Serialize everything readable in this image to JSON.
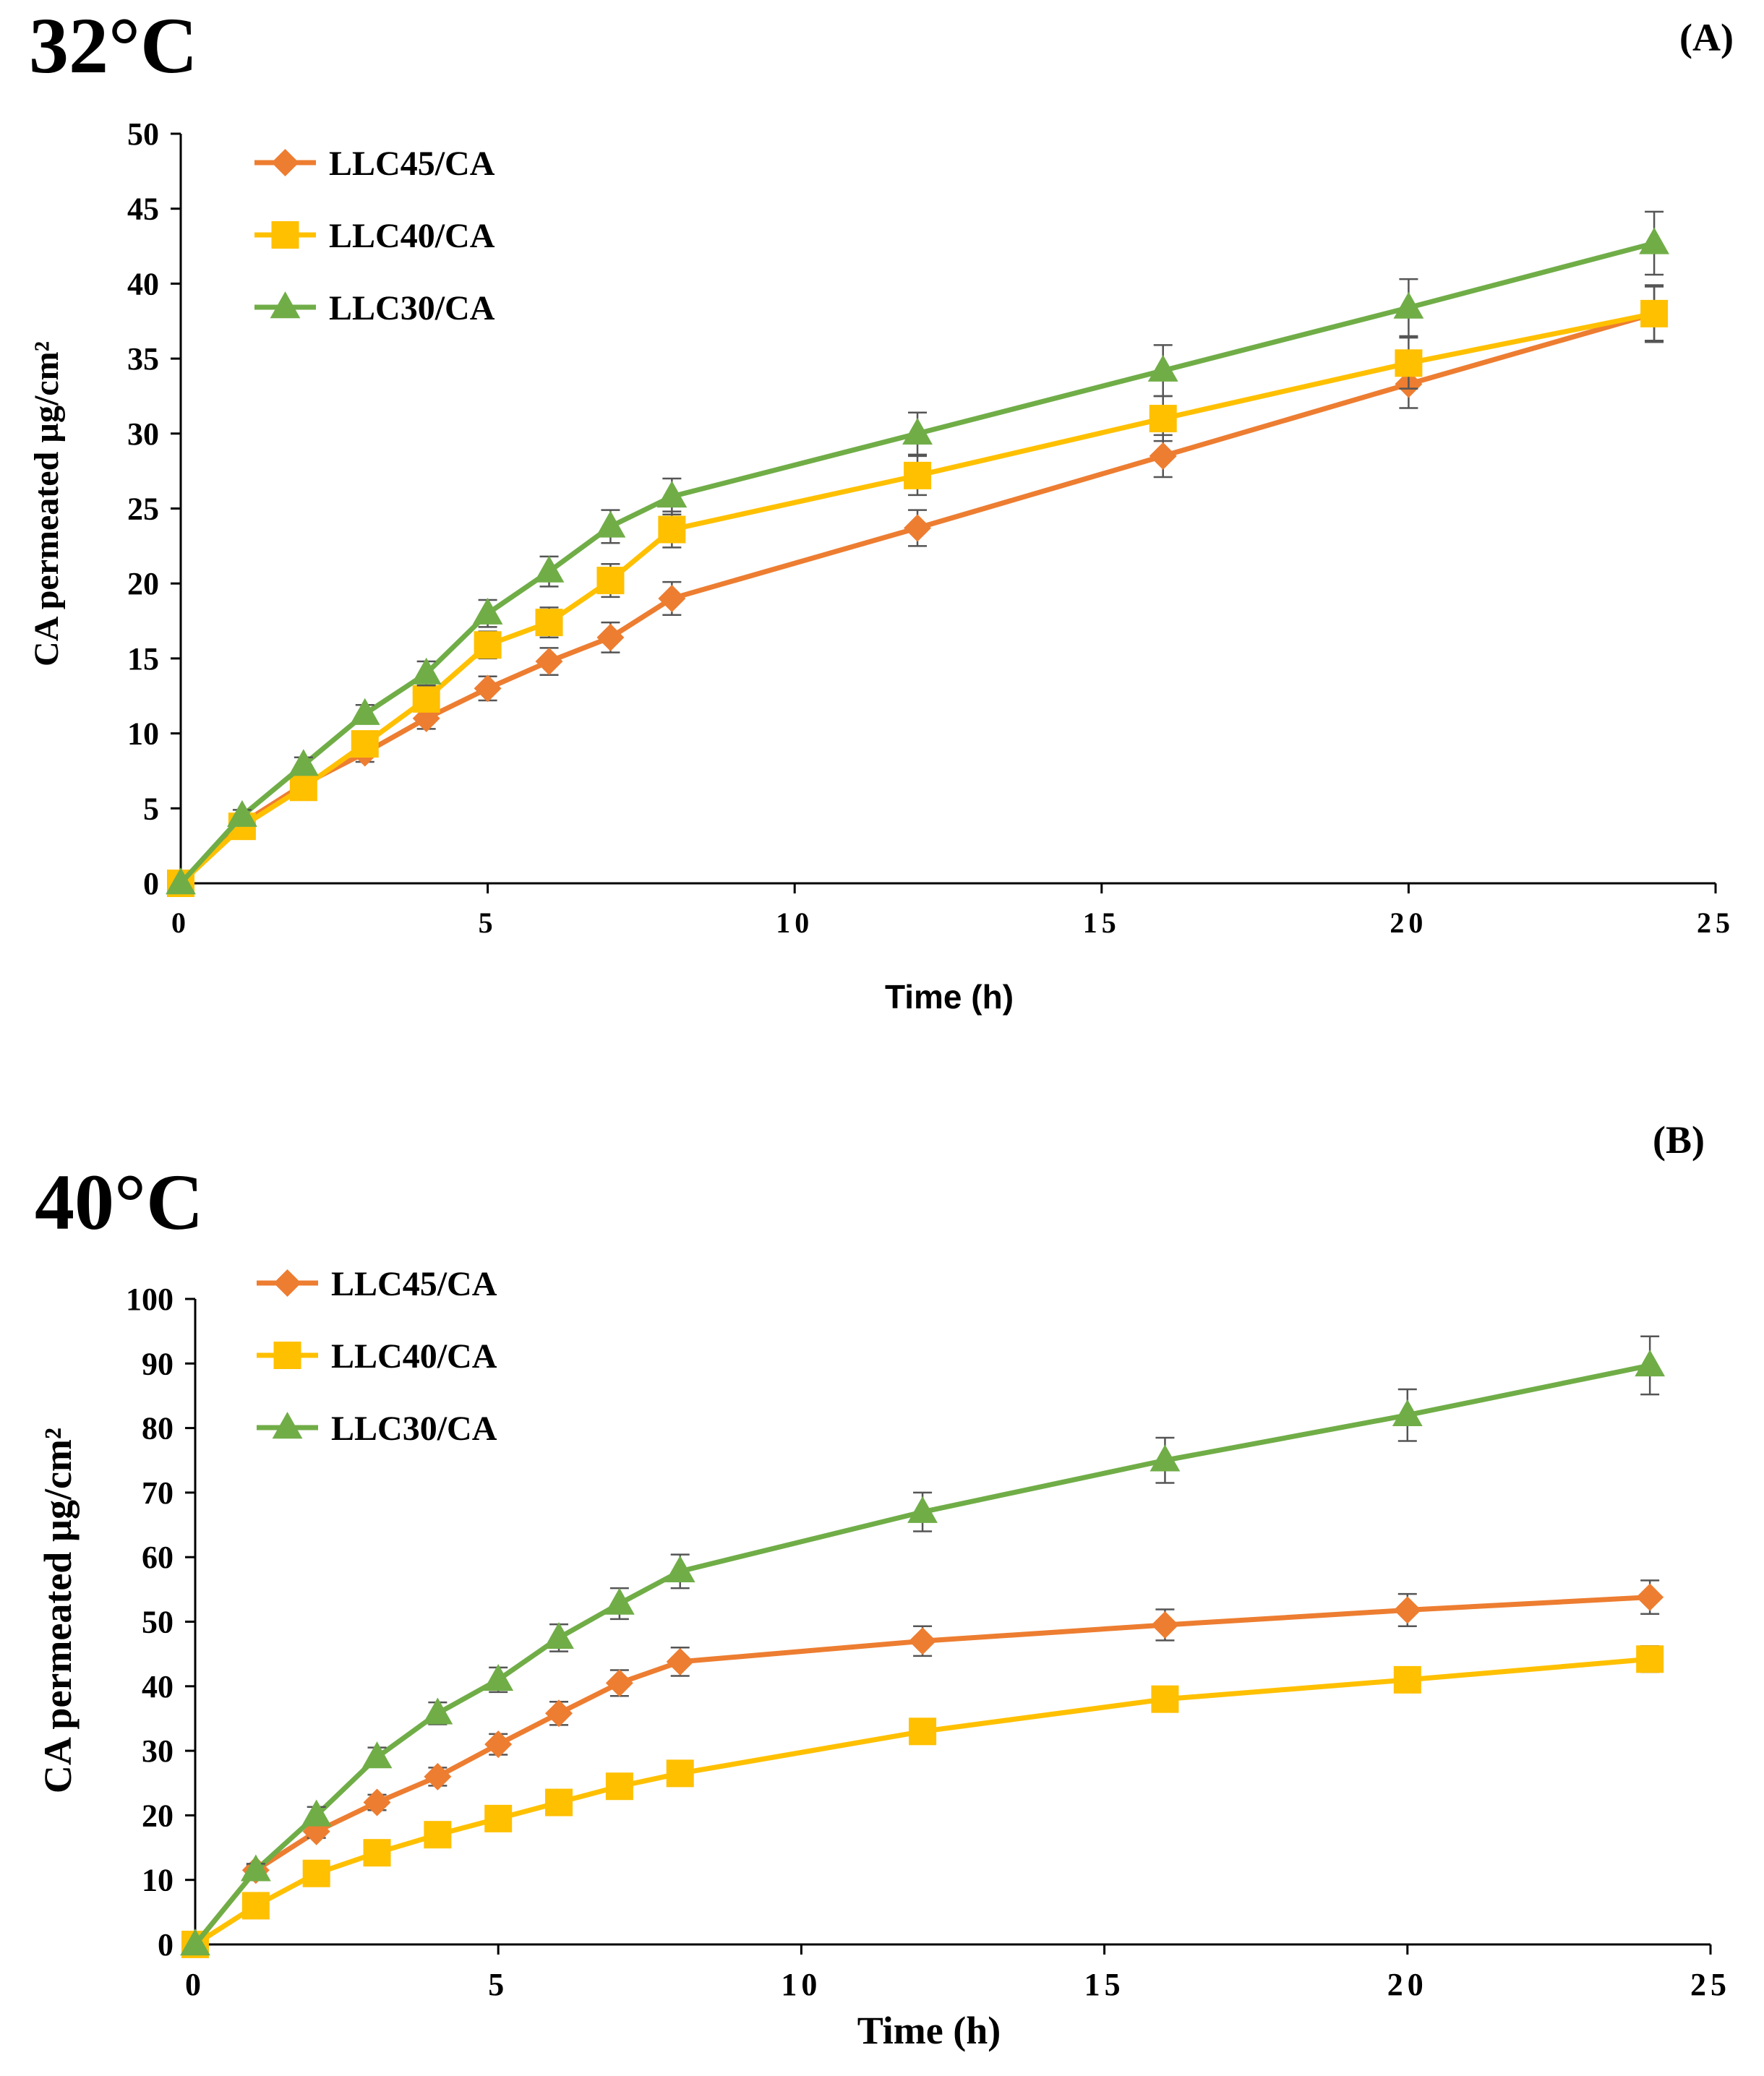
{
  "chart_data": [
    {
      "type": "line",
      "panel_label": "(A)",
      "temperature_label": "32°C",
      "xlabel": "Time (h)",
      "ylabel": "CA permeated µg/cm²",
      "xlim": [
        0,
        25
      ],
      "ylim": [
        0,
        50
      ],
      "xticks": [
        "0",
        "5",
        "10",
        "15",
        "20",
        "25"
      ],
      "yticks": [
        "0",
        "5",
        "10",
        "15",
        "20",
        "25",
        "30",
        "35",
        "40",
        "45",
        "50"
      ],
      "grid": false,
      "legend_position": "top-left",
      "x": [
        0,
        1,
        2,
        3,
        4,
        5,
        6,
        7,
        8,
        12,
        16,
        20,
        24
      ],
      "series": [
        {
          "name": "LLC45/CA",
          "color": "#ED7D31",
          "marker": "diamond",
          "values": [
            0,
            4.0,
            6.6,
            8.7,
            11.0,
            13.0,
            14.8,
            16.4,
            19.0,
            23.7,
            28.5,
            33.3,
            38.0
          ],
          "errors": [
            0,
            0.4,
            0.5,
            0.6,
            0.7,
            0.8,
            0.9,
            1.0,
            1.1,
            1.2,
            1.4,
            1.6,
            1.8
          ]
        },
        {
          "name": "LLC40/CA",
          "color": "#FFC000",
          "marker": "square",
          "values": [
            0,
            3.8,
            6.4,
            9.3,
            12.3,
            15.9,
            17.4,
            20.2,
            23.6,
            27.2,
            31.0,
            34.7,
            38.0
          ],
          "errors": [
            0,
            0.4,
            0.5,
            0.6,
            0.8,
            0.9,
            1.0,
            1.1,
            1.2,
            1.3,
            1.5,
            1.7,
            1.9
          ]
        },
        {
          "name": "LLC30/CA",
          "color": "#70AD47",
          "marker": "triangle",
          "values": [
            0,
            4.5,
            7.9,
            11.3,
            14.0,
            18.0,
            20.8,
            23.8,
            25.8,
            30.0,
            34.2,
            38.4,
            42.7
          ],
          "errors": [
            0,
            0.4,
            0.5,
            0.6,
            0.8,
            0.9,
            1.0,
            1.1,
            1.2,
            1.4,
            1.7,
            1.9,
            2.1
          ]
        }
      ]
    },
    {
      "type": "line",
      "panel_label": "(B)",
      "temperature_label": "40°C",
      "xlabel": "Time (h)",
      "ylabel": "CA permeated µg/cm²",
      "xlim": [
        0,
        25
      ],
      "ylim": [
        0,
        100
      ],
      "xticks": [
        "0",
        "5",
        "10",
        "15",
        "20",
        "25"
      ],
      "yticks": [
        "0",
        "10",
        "20",
        "30",
        "40",
        "50",
        "60",
        "70",
        "80",
        "90",
        "100"
      ],
      "grid": false,
      "legend_position": "top-left",
      "x": [
        0,
        1,
        2,
        3,
        4,
        5,
        6,
        7,
        8,
        12,
        16,
        20,
        24
      ],
      "series": [
        {
          "name": "LLC45/CA",
          "color": "#ED7D31",
          "marker": "diamond",
          "values": [
            0,
            11.5,
            17.5,
            22.0,
            26.0,
            31.0,
            35.8,
            40.5,
            43.8,
            47.0,
            49.5,
            51.8,
            53.8
          ],
          "errors": [
            0,
            0.8,
            1.0,
            1.2,
            1.4,
            1.6,
            1.8,
            2.0,
            2.2,
            2.3,
            2.4,
            2.5,
            2.6
          ]
        },
        {
          "name": "LLC40/CA",
          "color": "#FFC000",
          "marker": "square",
          "values": [
            0,
            6.0,
            11.0,
            14.2,
            17.0,
            19.5,
            22.0,
            24.5,
            26.5,
            33.0,
            38.0,
            41.0,
            44.2
          ],
          "errors": [
            0,
            0.5,
            0.7,
            0.8,
            0.9,
            1.0,
            1.1,
            1.2,
            1.3,
            1.5,
            1.7,
            1.9,
            2.0
          ]
        },
        {
          "name": "LLC30/CA",
          "color": "#70AD47",
          "marker": "triangle",
          "values": [
            0,
            11.5,
            20.0,
            29.0,
            35.8,
            41.0,
            47.5,
            52.8,
            57.8,
            67.0,
            75.0,
            82.0,
            89.7
          ],
          "errors": [
            0,
            1.0,
            1.3,
            1.5,
            1.7,
            1.9,
            2.1,
            2.4,
            2.6,
            3.0,
            3.5,
            4.0,
            4.5
          ]
        }
      ]
    }
  ]
}
